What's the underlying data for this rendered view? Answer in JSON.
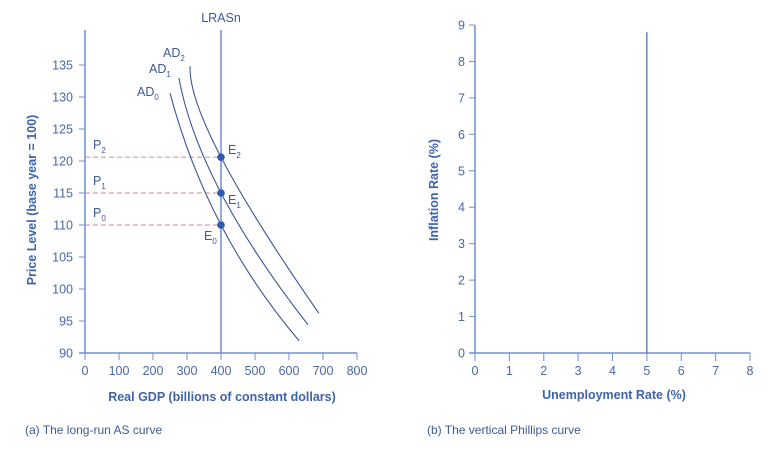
{
  "chart_data": [
    {
      "type": "line",
      "caption": "(a) The long-run AS curve",
      "xlabel": "Real GDP (billions of constant dollars)",
      "ylabel": "Price Level (base year = 100)",
      "xlim": [
        0,
        800
      ],
      "ylim": [
        90,
        140
      ],
      "xticks": [
        0,
        100,
        200,
        300,
        400,
        500,
        600,
        700,
        800
      ],
      "yticks": [
        90,
        95,
        100,
        105,
        110,
        115,
        120,
        125,
        130,
        135
      ],
      "grid": false,
      "lras": {
        "label": "LRASn",
        "x": 400
      },
      "series": [
        {
          "name": "AD",
          "sub": "0",
          "points": [
            [
              250,
              130.6
            ],
            [
              400,
              110
            ],
            [
              630,
              91.9
            ]
          ]
        },
        {
          "name": "AD",
          "sub": "1",
          "points": [
            [
              276,
              133
            ],
            [
              400,
              115
            ],
            [
              656,
              94.4
            ]
          ]
        },
        {
          "name": "AD",
          "sub": "2",
          "points": [
            [
              309,
              134.8
            ],
            [
              400,
              120.6
            ],
            [
              688,
              96.2
            ]
          ]
        }
      ],
      "equilibria": [
        {
          "name": "E",
          "sub": "0",
          "x": 400,
          "y": 110,
          "price_label": "P",
          "price_sub": "0"
        },
        {
          "name": "E",
          "sub": "1",
          "x": 400,
          "y": 115,
          "price_label": "P",
          "price_sub": "1"
        },
        {
          "name": "E",
          "sub": "2",
          "x": 400,
          "y": 120.6,
          "price_label": "P",
          "price_sub": "2"
        }
      ]
    },
    {
      "type": "line",
      "caption": "(b) The vertical Phillips curve",
      "xlabel": "Unemployment Rate (%)",
      "ylabel": "Inflation Rate (%)",
      "xlim": [
        0,
        8
      ],
      "ylim": [
        0,
        9
      ],
      "xticks": [
        0,
        1,
        2,
        3,
        4,
        5,
        6,
        7,
        8
      ],
      "yticks": [
        0,
        1,
        2,
        3,
        4,
        5,
        6,
        7,
        8,
        9
      ],
      "grid": false,
      "vertical_line": {
        "x": 5,
        "y_top": 8.8
      }
    }
  ],
  "colors": {
    "axis": "#6f8fcb",
    "curve": "#3a5596",
    "dash": "#c98aa0",
    "point": "#2e5bb0",
    "text": "#3c5a98"
  }
}
